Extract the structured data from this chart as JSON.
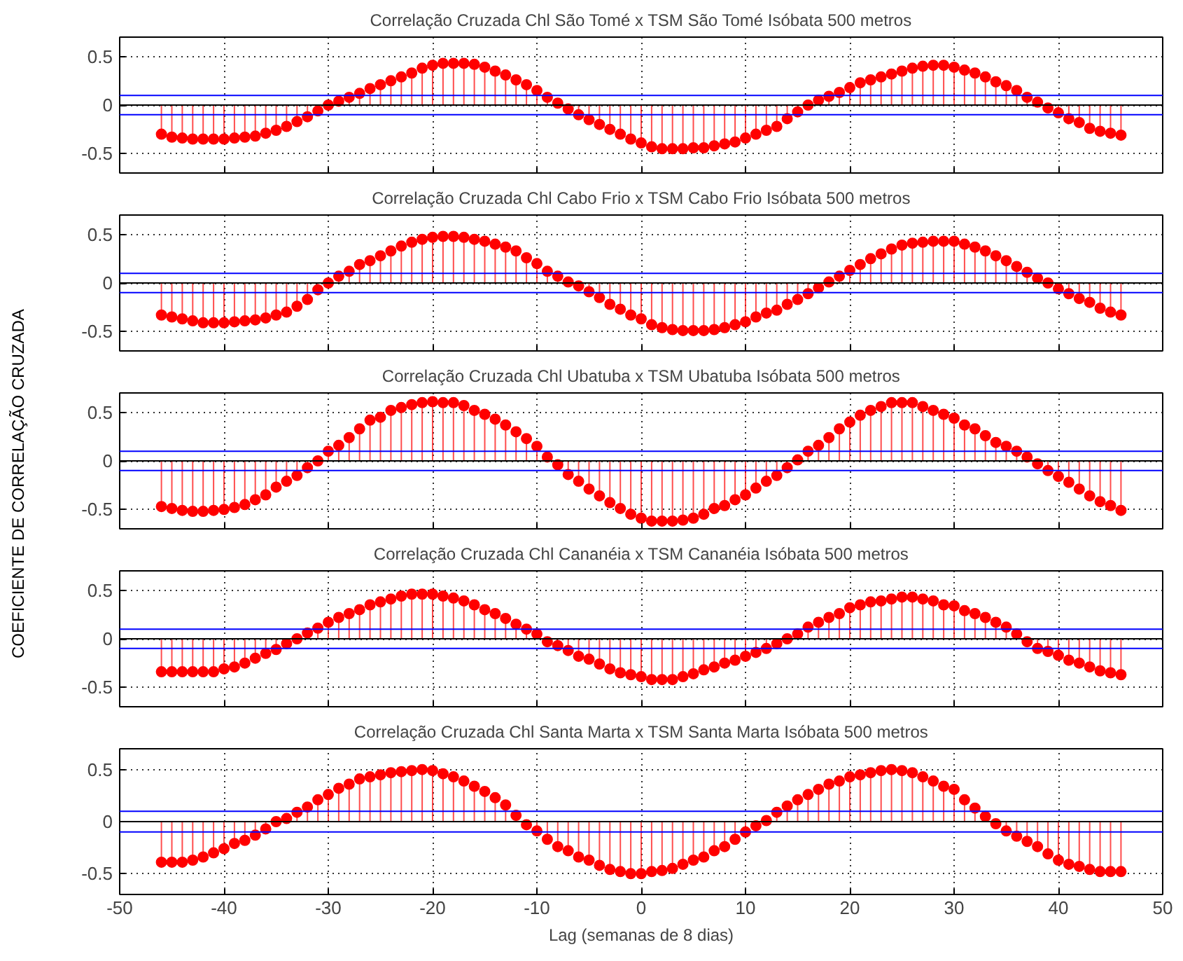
{
  "chart_data": [
    {
      "type": "lollipop",
      "title": "Correlação Cruzada Chl São Tomé x TSM São Tomé Isóbata 500 metros",
      "color": "#ff0000",
      "marker": "circle",
      "grid": true,
      "tick_labels": "y",
      "xlim": [
        -50,
        50
      ],
      "xticks": [
        -50,
        -40,
        -30,
        -20,
        -10,
        0,
        10,
        20,
        30,
        40,
        50
      ],
      "ylim": [
        -0.7,
        0.7
      ],
      "yticks": [
        -0.5,
        0,
        0.5
      ],
      "ref_lines": [
        {
          "axis": "y",
          "value": 0.1,
          "color": "#0000ff"
        },
        {
          "axis": "y",
          "value": -0.1,
          "color": "#0000ff"
        },
        {
          "axis": "y",
          "value": 0,
          "color": "#000000"
        }
      ],
      "x": [
        -46,
        -45,
        -44,
        -43,
        -42,
        -41,
        -40,
        -39,
        -38,
        -37,
        -36,
        -35,
        -34,
        -33,
        -32,
        -31,
        -30,
        -29,
        -28,
        -27,
        -26,
        -25,
        -24,
        -23,
        -22,
        -21,
        -20,
        -19,
        -18,
        -17,
        -16,
        -15,
        -14,
        -13,
        -12,
        -11,
        -10,
        -9,
        -8,
        -7,
        -6,
        -5,
        -4,
        -3,
        -2,
        -1,
        0,
        1,
        2,
        3,
        4,
        5,
        6,
        7,
        8,
        9,
        10,
        11,
        12,
        13,
        14,
        15,
        16,
        17,
        18,
        19,
        20,
        21,
        22,
        23,
        24,
        25,
        26,
        27,
        28,
        29,
        30,
        31,
        32,
        33,
        34,
        35,
        36,
        37,
        38,
        39,
        40,
        41,
        42,
        43,
        44,
        45,
        46
      ],
      "values": [
        -0.3,
        -0.33,
        -0.34,
        -0.35,
        -0.35,
        -0.35,
        -0.35,
        -0.34,
        -0.33,
        -0.32,
        -0.29,
        -0.26,
        -0.22,
        -0.17,
        -0.12,
        -0.06,
        0.0,
        0.04,
        0.08,
        0.12,
        0.17,
        0.21,
        0.25,
        0.29,
        0.33,
        0.38,
        0.41,
        0.43,
        0.43,
        0.43,
        0.42,
        0.39,
        0.35,
        0.31,
        0.26,
        0.21,
        0.15,
        0.08,
        0.02,
        -0.04,
        -0.1,
        -0.15,
        -0.2,
        -0.25,
        -0.3,
        -0.35,
        -0.39,
        -0.43,
        -0.45,
        -0.45,
        -0.45,
        -0.44,
        -0.44,
        -0.42,
        -0.4,
        -0.38,
        -0.34,
        -0.3,
        -0.26,
        -0.22,
        -0.14,
        -0.07,
        0.0,
        0.05,
        0.09,
        0.13,
        0.18,
        0.23,
        0.26,
        0.29,
        0.32,
        0.35,
        0.38,
        0.4,
        0.41,
        0.41,
        0.39,
        0.36,
        0.33,
        0.29,
        0.24,
        0.2,
        0.15,
        0.08,
        0.03,
        -0.03,
        -0.08,
        -0.14,
        -0.18,
        -0.24,
        -0.27,
        -0.29,
        -0.31
      ]
    },
    {
      "type": "lollipop",
      "title": "Correlação Cruzada Chl Cabo Frio x TSM Cabo Frio Isóbata 500 metros",
      "color": "#ff0000",
      "marker": "circle",
      "grid": true,
      "tick_labels": "y",
      "xlim": [
        -50,
        50
      ],
      "xticks": [
        -50,
        -40,
        -30,
        -20,
        -10,
        0,
        10,
        20,
        30,
        40,
        50
      ],
      "ylim": [
        -0.7,
        0.7
      ],
      "yticks": [
        -0.5,
        0,
        0.5
      ],
      "ref_lines": [
        {
          "axis": "y",
          "value": 0.1,
          "color": "#0000ff"
        },
        {
          "axis": "y",
          "value": -0.1,
          "color": "#0000ff"
        },
        {
          "axis": "y",
          "value": 0,
          "color": "#000000"
        }
      ],
      "x": [
        -46,
        -45,
        -44,
        -43,
        -42,
        -41,
        -40,
        -39,
        -38,
        -37,
        -36,
        -35,
        -34,
        -33,
        -32,
        -31,
        -30,
        -29,
        -28,
        -27,
        -26,
        -25,
        -24,
        -23,
        -22,
        -21,
        -20,
        -19,
        -18,
        -17,
        -16,
        -15,
        -14,
        -13,
        -12,
        -11,
        -10,
        -9,
        -8,
        -7,
        -6,
        -5,
        -4,
        -3,
        -2,
        -1,
        0,
        1,
        2,
        3,
        4,
        5,
        6,
        7,
        8,
        9,
        10,
        11,
        12,
        13,
        14,
        15,
        16,
        17,
        18,
        19,
        20,
        21,
        22,
        23,
        24,
        25,
        26,
        27,
        28,
        29,
        30,
        31,
        32,
        33,
        34,
        35,
        36,
        37,
        38,
        39,
        40,
        41,
        42,
        43,
        44,
        45,
        46
      ],
      "values": [
        -0.33,
        -0.35,
        -0.37,
        -0.39,
        -0.41,
        -0.41,
        -0.41,
        -0.4,
        -0.39,
        -0.38,
        -0.36,
        -0.33,
        -0.3,
        -0.24,
        -0.17,
        -0.07,
        0.0,
        0.07,
        0.12,
        0.19,
        0.23,
        0.28,
        0.33,
        0.38,
        0.42,
        0.45,
        0.47,
        0.48,
        0.48,
        0.47,
        0.45,
        0.43,
        0.4,
        0.37,
        0.33,
        0.26,
        0.2,
        0.12,
        0.07,
        0.01,
        -0.03,
        -0.09,
        -0.15,
        -0.22,
        -0.27,
        -0.33,
        -0.37,
        -0.43,
        -0.46,
        -0.48,
        -0.49,
        -0.49,
        -0.49,
        -0.48,
        -0.46,
        -0.43,
        -0.4,
        -0.35,
        -0.31,
        -0.28,
        -0.22,
        -0.17,
        -0.11,
        -0.05,
        0.01,
        0.07,
        0.13,
        0.19,
        0.25,
        0.3,
        0.35,
        0.39,
        0.41,
        0.42,
        0.43,
        0.43,
        0.43,
        0.4,
        0.37,
        0.33,
        0.28,
        0.23,
        0.17,
        0.11,
        0.05,
        0.0,
        -0.06,
        -0.11,
        -0.16,
        -0.2,
        -0.26,
        -0.3,
        -0.33
      ]
    },
    {
      "type": "lollipop",
      "title": "Correlação Cruzada Chl Ubatuba x TSM Ubatuba Isóbata 500 metros",
      "ylabel": "COEFICIENTE DE CORRELAÇÃO CRUZADA",
      "color": "#ff0000",
      "marker": "circle",
      "grid": true,
      "tick_labels": "y",
      "xlim": [
        -50,
        50
      ],
      "xticks": [
        -50,
        -40,
        -30,
        -20,
        -10,
        0,
        10,
        20,
        30,
        40,
        50
      ],
      "ylim": [
        -0.7,
        0.7
      ],
      "yticks": [
        -0.5,
        0,
        0.5
      ],
      "ref_lines": [
        {
          "axis": "y",
          "value": 0.1,
          "color": "#0000ff"
        },
        {
          "axis": "y",
          "value": -0.1,
          "color": "#0000ff"
        },
        {
          "axis": "y",
          "value": 0,
          "color": "#000000"
        }
      ],
      "x": [
        -46,
        -45,
        -44,
        -43,
        -42,
        -41,
        -40,
        -39,
        -38,
        -37,
        -36,
        -35,
        -34,
        -33,
        -32,
        -31,
        -30,
        -29,
        -28,
        -27,
        -26,
        -25,
        -24,
        -23,
        -22,
        -21,
        -20,
        -19,
        -18,
        -17,
        -16,
        -15,
        -14,
        -13,
        -12,
        -11,
        -10,
        -9,
        -8,
        -7,
        -6,
        -5,
        -4,
        -3,
        -2,
        -1,
        0,
        1,
        2,
        3,
        4,
        5,
        6,
        7,
        8,
        9,
        10,
        11,
        12,
        13,
        14,
        15,
        16,
        17,
        18,
        19,
        20,
        21,
        22,
        23,
        24,
        25,
        26,
        27,
        28,
        29,
        30,
        31,
        32,
        33,
        34,
        35,
        36,
        37,
        38,
        39,
        40,
        41,
        42,
        43,
        44,
        45,
        46
      ],
      "values": [
        -0.47,
        -0.49,
        -0.51,
        -0.52,
        -0.52,
        -0.51,
        -0.5,
        -0.48,
        -0.45,
        -0.4,
        -0.35,
        -0.27,
        -0.21,
        -0.15,
        -0.07,
        0.0,
        0.1,
        0.16,
        0.24,
        0.33,
        0.42,
        0.45,
        0.52,
        0.55,
        0.58,
        0.6,
        0.61,
        0.6,
        0.6,
        0.57,
        0.52,
        0.48,
        0.43,
        0.37,
        0.3,
        0.23,
        0.15,
        0.04,
        -0.04,
        -0.14,
        -0.21,
        -0.29,
        -0.36,
        -0.43,
        -0.49,
        -0.55,
        -0.59,
        -0.62,
        -0.62,
        -0.62,
        -0.61,
        -0.59,
        -0.55,
        -0.49,
        -0.46,
        -0.4,
        -0.35,
        -0.28,
        -0.21,
        -0.15,
        -0.07,
        0.01,
        0.1,
        0.16,
        0.24,
        0.33,
        0.4,
        0.47,
        0.52,
        0.56,
        0.6,
        0.6,
        0.6,
        0.56,
        0.52,
        0.48,
        0.44,
        0.37,
        0.33,
        0.26,
        0.19,
        0.15,
        0.1,
        0.04,
        -0.03,
        -0.1,
        -0.16,
        -0.22,
        -0.29,
        -0.36,
        -0.42,
        -0.46,
        -0.51
      ]
    },
    {
      "type": "lollipop",
      "title": "Correlação Cruzada Chl Cananéia x TSM Cananéia Isóbata 500 metros",
      "color": "#ff0000",
      "marker": "circle",
      "grid": true,
      "tick_labels": "y",
      "xlim": [
        -50,
        50
      ],
      "xticks": [
        -50,
        -40,
        -30,
        -20,
        -10,
        0,
        10,
        20,
        30,
        40,
        50
      ],
      "ylim": [
        -0.7,
        0.7
      ],
      "yticks": [
        -0.5,
        0,
        0.5
      ],
      "ref_lines": [
        {
          "axis": "y",
          "value": 0.1,
          "color": "#0000ff"
        },
        {
          "axis": "y",
          "value": -0.1,
          "color": "#0000ff"
        },
        {
          "axis": "y",
          "value": 0,
          "color": "#000000"
        }
      ],
      "x": [
        -46,
        -45,
        -44,
        -43,
        -42,
        -41,
        -40,
        -39,
        -38,
        -37,
        -36,
        -35,
        -34,
        -33,
        -32,
        -31,
        -30,
        -29,
        -28,
        -27,
        -26,
        -25,
        -24,
        -23,
        -22,
        -21,
        -20,
        -19,
        -18,
        -17,
        -16,
        -15,
        -14,
        -13,
        -12,
        -11,
        -10,
        -9,
        -8,
        -7,
        -6,
        -5,
        -4,
        -3,
        -2,
        -1,
        0,
        1,
        2,
        3,
        4,
        5,
        6,
        7,
        8,
        9,
        10,
        11,
        12,
        13,
        14,
        15,
        16,
        17,
        18,
        19,
        20,
        21,
        22,
        23,
        24,
        25,
        26,
        27,
        28,
        29,
        30,
        31,
        32,
        33,
        34,
        35,
        36,
        37,
        38,
        39,
        40,
        41,
        42,
        43,
        44,
        45,
        46
      ],
      "values": [
        -0.34,
        -0.34,
        -0.34,
        -0.34,
        -0.34,
        -0.34,
        -0.31,
        -0.29,
        -0.25,
        -0.2,
        -0.15,
        -0.11,
        -0.05,
        0.0,
        0.06,
        0.11,
        0.17,
        0.22,
        0.26,
        0.3,
        0.35,
        0.38,
        0.41,
        0.44,
        0.46,
        0.46,
        0.46,
        0.44,
        0.42,
        0.39,
        0.35,
        0.3,
        0.26,
        0.21,
        0.15,
        0.1,
        0.05,
        -0.03,
        -0.07,
        -0.12,
        -0.18,
        -0.21,
        -0.26,
        -0.31,
        -0.35,
        -0.37,
        -0.39,
        -0.42,
        -0.42,
        -0.42,
        -0.39,
        -0.36,
        -0.32,
        -0.29,
        -0.25,
        -0.22,
        -0.18,
        -0.14,
        -0.1,
        -0.05,
        0.0,
        0.05,
        0.12,
        0.17,
        0.22,
        0.26,
        0.32,
        0.35,
        0.38,
        0.39,
        0.41,
        0.43,
        0.43,
        0.41,
        0.39,
        0.35,
        0.34,
        0.29,
        0.26,
        0.22,
        0.17,
        0.12,
        0.05,
        -0.03,
        -0.1,
        -0.13,
        -0.17,
        -0.22,
        -0.25,
        -0.29,
        -0.33,
        -0.35,
        -0.37
      ]
    },
    {
      "type": "lollipop",
      "title": "Correlação Cruzada Chl Santa Marta x TSM Santa Marta Isóbata 500 metros",
      "xlabel": "Lag (semanas de 8 dias)",
      "color": "#ff0000",
      "marker": "circle",
      "grid": true,
      "xlim": [
        -50,
        50
      ],
      "xticks": [
        -50,
        -40,
        -30,
        -20,
        -10,
        0,
        10,
        20,
        30,
        40,
        50
      ],
      "ylim": [
        -0.7,
        0.7
      ],
      "yticks": [
        -0.5,
        0,
        0.5
      ],
      "ref_lines": [
        {
          "axis": "y",
          "value": 0.1,
          "color": "#0000ff"
        },
        {
          "axis": "y",
          "value": -0.1,
          "color": "#0000ff"
        },
        {
          "axis": "y",
          "value": 0,
          "color": "#000000"
        }
      ],
      "x": [
        -46,
        -45,
        -44,
        -43,
        -42,
        -41,
        -40,
        -39,
        -38,
        -37,
        -36,
        -35,
        -34,
        -33,
        -32,
        -31,
        -30,
        -29,
        -28,
        -27,
        -26,
        -25,
        -24,
        -23,
        -22,
        -21,
        -20,
        -19,
        -18,
        -17,
        -16,
        -15,
        -14,
        -13,
        -12,
        -11,
        -10,
        -9,
        -8,
        -7,
        -6,
        -5,
        -4,
        -3,
        -2,
        -1,
        0,
        1,
        2,
        3,
        4,
        5,
        6,
        7,
        8,
        9,
        10,
        11,
        12,
        13,
        14,
        15,
        16,
        17,
        18,
        19,
        20,
        21,
        22,
        23,
        24,
        25,
        26,
        27,
        28,
        29,
        30,
        31,
        32,
        33,
        34,
        35,
        36,
        37,
        38,
        39,
        40,
        41,
        42,
        43,
        44,
        45,
        46
      ],
      "values": [
        -0.39,
        -0.39,
        -0.39,
        -0.37,
        -0.34,
        -0.3,
        -0.26,
        -0.21,
        -0.18,
        -0.13,
        -0.07,
        0.0,
        0.03,
        0.09,
        0.14,
        0.21,
        0.26,
        0.32,
        0.36,
        0.41,
        0.43,
        0.45,
        0.47,
        0.48,
        0.49,
        0.5,
        0.49,
        0.46,
        0.43,
        0.39,
        0.34,
        0.29,
        0.23,
        0.16,
        0.06,
        -0.03,
        -0.09,
        -0.17,
        -0.24,
        -0.28,
        -0.34,
        -0.37,
        -0.42,
        -0.46,
        -0.48,
        -0.5,
        -0.5,
        -0.48,
        -0.47,
        -0.45,
        -0.41,
        -0.37,
        -0.34,
        -0.28,
        -0.24,
        -0.17,
        -0.1,
        -0.04,
        0.01,
        0.09,
        0.15,
        0.21,
        0.26,
        0.31,
        0.36,
        0.39,
        0.43,
        0.45,
        0.47,
        0.49,
        0.5,
        0.49,
        0.47,
        0.43,
        0.39,
        0.34,
        0.31,
        0.21,
        0.13,
        0.05,
        -0.02,
        -0.09,
        -0.14,
        -0.19,
        -0.24,
        -0.31,
        -0.37,
        -0.41,
        -0.43,
        -0.46,
        -0.48,
        -0.48,
        -0.48
      ]
    }
  ]
}
